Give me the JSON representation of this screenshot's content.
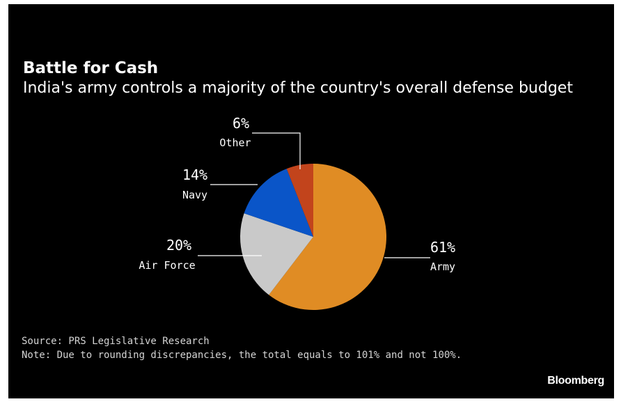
{
  "chart_data": {
    "type": "pie",
    "title": "Battle for Cash",
    "subtitle": "India's army controls a majority of the country's overall defense budget",
    "slices": [
      {
        "name": "Army",
        "value": 61,
        "label": "61%",
        "color": "#e08c24"
      },
      {
        "name": "Air Force",
        "value": 20,
        "label": "20%",
        "color": "#c9c9c9"
      },
      {
        "name": "Navy",
        "value": 14,
        "label": "14%",
        "color": "#0a55c8"
      },
      {
        "name": "Other",
        "value": 6,
        "label": "6%",
        "color": "#c2441c"
      }
    ],
    "start_at": "12 o'clock",
    "direction": "clockwise"
  },
  "footer": {
    "source": "Source: PRS Legislative Research",
    "note": "Note: Due to rounding discrepancies, the total equals to 101% and not 100%.",
    "brand": "Bloomberg"
  },
  "colors": {
    "background": "#000000",
    "text": "#ffffff",
    "muted_text": "#d4d4d4",
    "leader_line": "#ffffff"
  }
}
